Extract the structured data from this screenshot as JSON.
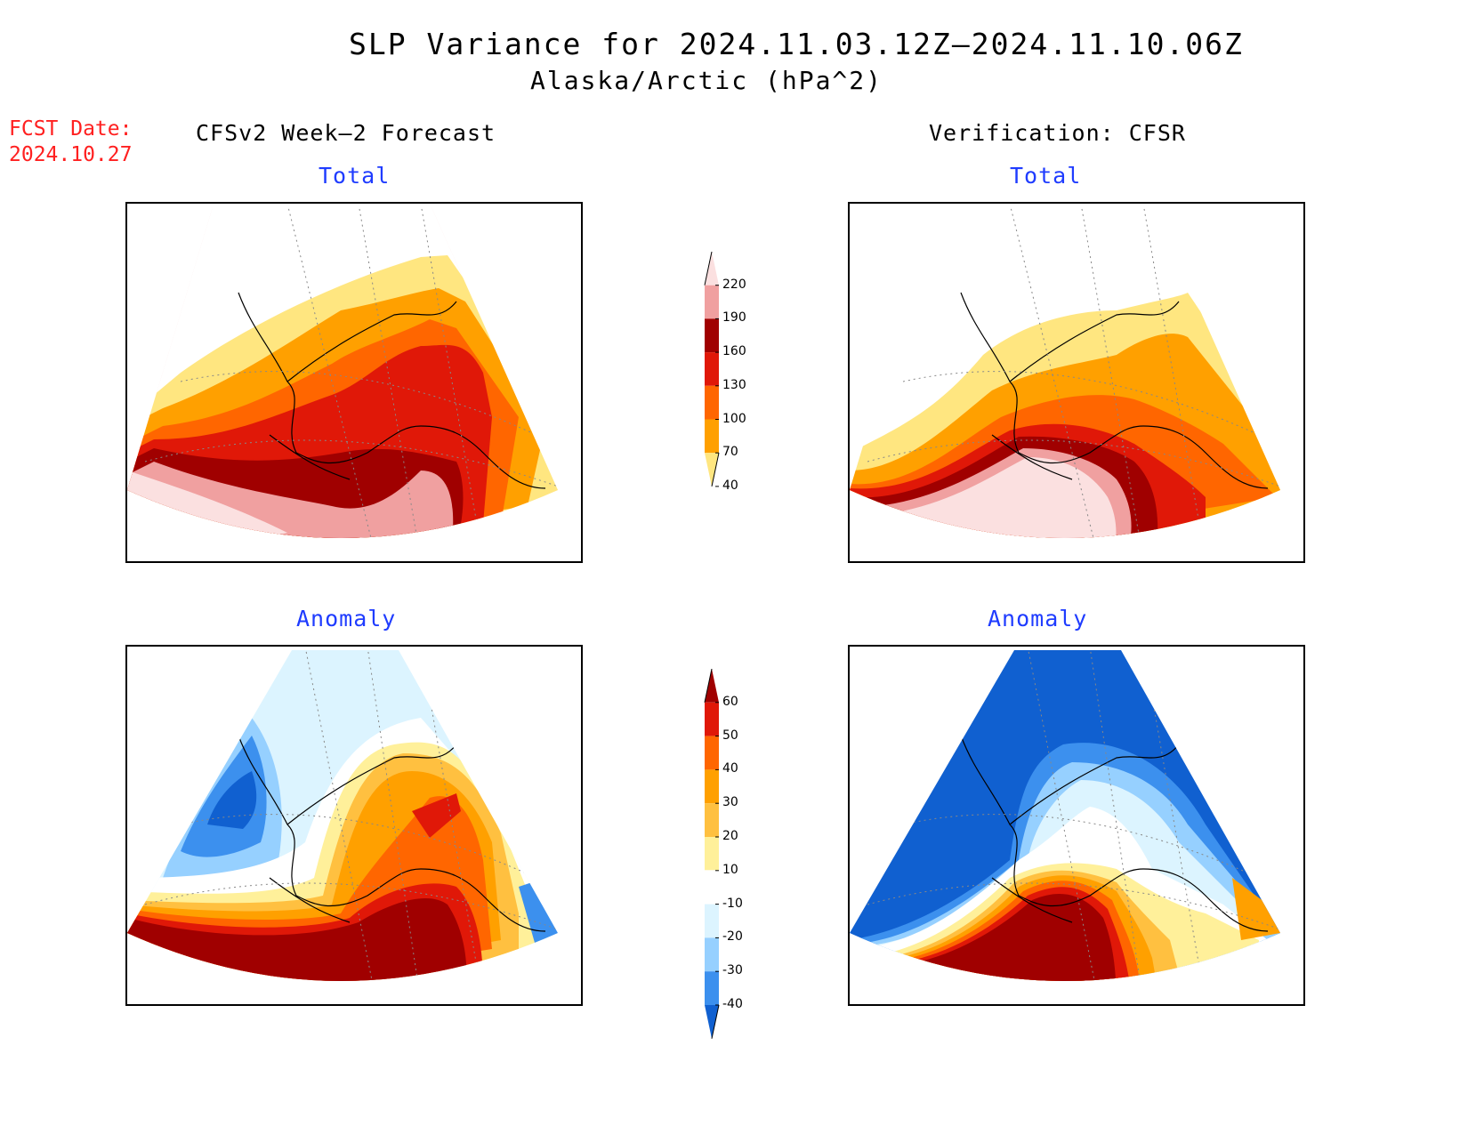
{
  "header": {
    "title": "SLP Variance for 2024.11.03.12Z—2024.11.10.06Z",
    "subtitle": "Alaska/Arctic (hPa^2)"
  },
  "fcst_date": {
    "label": "FCST Date:",
    "value": "2024.10.27"
  },
  "columns": {
    "left_heading": "CFSv2 Week—2 Forecast",
    "right_heading": "Verification: CFSR"
  },
  "panels": {
    "forecast_total_title": "Total",
    "verification_total_title": "Total",
    "forecast_anomaly_title": "Anomaly",
    "verification_anomaly_title": "Anomaly"
  },
  "colorbars": {
    "total": {
      "labels": [
        "220",
        "190",
        "160",
        "130",
        "100",
        "70",
        "40"
      ],
      "colors": [
        "#fbe0e0",
        "#f0a0a0",
        "#a00000",
        "#e01808",
        "#ff6600",
        "#ffa000",
        "#ffe680"
      ]
    },
    "anomaly": {
      "labels": [
        "60",
        "50",
        "40",
        "30",
        "20",
        "10",
        "-10",
        "-20",
        "-30",
        "-40"
      ],
      "colors": [
        "#a00000",
        "#e01808",
        "#ff6600",
        "#ffa000",
        "#ffc040",
        "#fff09a",
        "#ffffff",
        "#dcf4ff",
        "#96d0ff",
        "#3c90ee",
        "#1060d0"
      ]
    }
  },
  "map_colors": {
    "total": {
      "c40": "#ffe680",
      "c70": "#ffa000",
      "c100": "#ff6600",
      "c130": "#e01808",
      "c160": "#a00000",
      "c190": "#f0a0a0",
      "c220": "#fbe0e0"
    },
    "anomaly": {
      "p60": "#a00000",
      "p50": "#e01808",
      "p40": "#ff6600",
      "p30": "#ffa000",
      "p20": "#ffc040",
      "p10": "#fff09a",
      "zero": "#ffffff",
      "n10": "#dcf4ff",
      "n20": "#96d0ff",
      "n30": "#3c90ee",
      "n40": "#1060d0"
    }
  }
}
